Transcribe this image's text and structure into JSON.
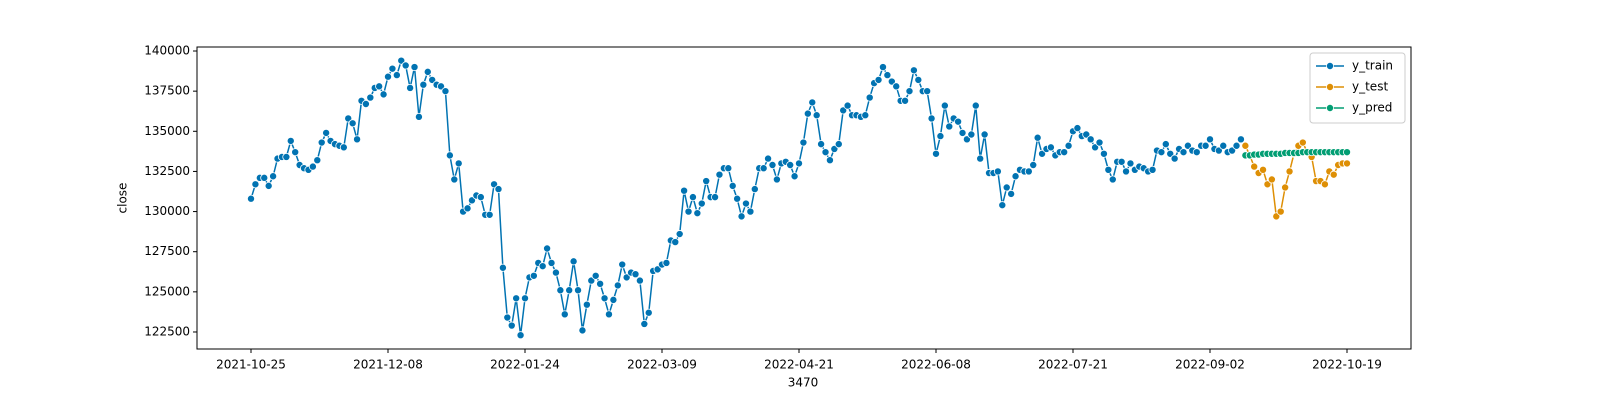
{
  "chart_data": {
    "type": "line",
    "x_label": "3470",
    "y_label": "close",
    "categories": [
      "2021-10-25",
      null,
      null,
      null,
      null,
      null,
      null,
      null,
      null,
      null,
      null,
      null,
      null,
      null,
      null,
      null,
      null,
      null,
      null,
      null,
      null,
      null,
      null,
      null,
      null,
      null,
      null,
      null,
      null,
      null,
      null,
      "2021-12-08",
      null,
      null,
      null,
      null,
      null,
      null,
      null,
      null,
      null,
      null,
      null,
      null,
      null,
      null,
      null,
      null,
      null,
      null,
      null,
      null,
      null,
      null,
      null,
      null,
      null,
      null,
      null,
      null,
      null,
      null,
      "2022-01-24",
      null,
      null,
      null,
      null,
      null,
      null,
      null,
      null,
      null,
      null,
      null,
      null,
      null,
      null,
      null,
      null,
      null,
      null,
      null,
      null,
      null,
      null,
      null,
      null,
      null,
      null,
      null,
      null,
      null,
      null,
      "2022-03-09",
      null,
      null,
      null,
      null,
      null,
      null,
      null,
      null,
      null,
      null,
      null,
      null,
      null,
      null,
      null,
      null,
      null,
      null,
      null,
      null,
      null,
      null,
      null,
      null,
      null,
      null,
      null,
      null,
      null,
      null,
      "2022-04-21",
      null,
      null,
      null,
      null,
      null,
      null,
      null,
      null,
      null,
      null,
      null,
      null,
      null,
      null,
      null,
      null,
      null,
      null,
      null,
      null,
      null,
      null,
      null,
      null,
      null,
      null,
      null,
      null,
      null,
      null,
      "2022-06-08",
      null,
      null,
      null,
      null,
      null,
      null,
      null,
      null,
      null,
      null,
      null,
      null,
      null,
      null,
      null,
      null,
      null,
      null,
      null,
      null,
      null,
      null,
      null,
      null,
      null,
      null,
      null,
      null,
      null,
      null,
      "2022-07-21",
      null,
      null,
      null,
      null,
      null,
      null,
      null,
      null,
      null,
      null,
      null,
      null,
      null,
      null,
      null,
      null,
      null,
      null,
      null,
      null,
      null,
      null,
      null,
      null,
      null,
      null,
      null,
      null,
      null,
      null,
      "2022-09-02",
      null,
      null,
      null,
      null,
      null,
      null,
      null,
      null,
      null,
      null,
      null,
      null,
      null,
      null,
      null,
      null,
      null,
      null,
      null,
      null,
      null,
      null,
      null,
      null,
      null,
      null,
      null,
      null,
      null,
      null,
      "2022-10-19"
    ],
    "series": [
      {
        "name": "y_train",
        "color": "#0173b2",
        "values": [
          130800,
          131700,
          132100,
          132100,
          131600,
          132200,
          133300,
          133400,
          133400,
          134400,
          133700,
          132900,
          132700,
          132600,
          132800,
          133200,
          134300,
          134900,
          134400,
          134200,
          134100,
          134000,
          135800,
          135500,
          134500,
          136900,
          136700,
          137100,
          137700,
          137800,
          137300,
          138400,
          138900,
          138500,
          139400,
          139100,
          137700,
          139000,
          135900,
          137900,
          138700,
          138200,
          137900,
          137800,
          137500,
          133500,
          132000,
          133000,
          130000,
          130200,
          130700,
          131000,
          130900,
          129800,
          129800,
          131700,
          131400,
          126500,
          123400,
          122900,
          124600,
          122300,
          124600,
          125900,
          126000,
          126800,
          126600,
          127700,
          126800,
          126200,
          125100,
          123600,
          125100,
          126900,
          125100,
          122600,
          124200,
          125700,
          126000,
          125500,
          124600,
          123600,
          124500,
          125400,
          126700,
          125900,
          126200,
          126100,
          125700,
          123000,
          123700,
          126300,
          126400,
          126700,
          126800,
          128200,
          128100,
          128600,
          131300,
          130000,
          130900,
          129900,
          130500,
          131900,
          130900,
          130900,
          132300,
          132700,
          132700,
          131600,
          130800,
          129700,
          130500,
          130000,
          131400,
          132700,
          132700,
          133300,
          132900,
          132000,
          133000,
          133100,
          132900,
          132200,
          133000,
          134300,
          136100,
          136800,
          136000,
          134200,
          133700,
          133200,
          133900,
          134200,
          136300,
          136600,
          136000,
          136000,
          135900,
          136000,
          137100,
          138000,
          138200,
          139000,
          138500,
          138100,
          137800,
          136900,
          136900,
          137500,
          138800,
          138200,
          137500,
          137500,
          135800,
          133600,
          134700,
          136600,
          135300,
          135800,
          135600,
          134900,
          134500,
          134800,
          136600,
          133300,
          134800,
          132400,
          132400,
          132500,
          130400,
          131500,
          131100,
          132200,
          132600,
          132500,
          132500,
          132900,
          134600,
          133600,
          133900,
          134000,
          133500,
          133700,
          133700,
          134100,
          135000,
          135200,
          134700,
          134800,
          134500,
          134000,
          134300,
          133600,
          132600,
          132000,
          133100,
          133100,
          132500,
          133000,
          132600,
          132800,
          132700,
          132500,
          132600,
          133800,
          133700,
          134200,
          133600,
          133300,
          133900,
          133700,
          134100,
          133800,
          133700,
          134100,
          134100,
          134500,
          133900,
          133800,
          134100,
          133700,
          133800,
          134100,
          134500,
          null,
          null,
          null,
          null,
          null,
          null,
          null,
          null,
          null,
          null,
          null,
          null,
          null,
          null,
          null,
          null,
          null,
          null,
          null,
          null,
          null,
          null,
          null,
          null
        ]
      },
      {
        "name": "y_test",
        "color": "#de8f05",
        "values": [
          null,
          null,
          null,
          null,
          null,
          null,
          null,
          null,
          null,
          null,
          null,
          null,
          null,
          null,
          null,
          null,
          null,
          null,
          null,
          null,
          null,
          null,
          null,
          null,
          null,
          null,
          null,
          null,
          null,
          null,
          null,
          null,
          null,
          null,
          null,
          null,
          null,
          null,
          null,
          null,
          null,
          null,
          null,
          null,
          null,
          null,
          null,
          null,
          null,
          null,
          null,
          null,
          null,
          null,
          null,
          null,
          null,
          null,
          null,
          null,
          null,
          null,
          null,
          null,
          null,
          null,
          null,
          null,
          null,
          null,
          null,
          null,
          null,
          null,
          null,
          null,
          null,
          null,
          null,
          null,
          null,
          null,
          null,
          null,
          null,
          null,
          null,
          null,
          null,
          null,
          null,
          null,
          null,
          null,
          null,
          null,
          null,
          null,
          null,
          null,
          null,
          null,
          null,
          null,
          null,
          null,
          null,
          null,
          null,
          null,
          null,
          null,
          null,
          null,
          null,
          null,
          null,
          null,
          null,
          null,
          null,
          null,
          null,
          null,
          null,
          null,
          null,
          null,
          null,
          null,
          null,
          null,
          null,
          null,
          null,
          null,
          null,
          null,
          null,
          null,
          null,
          null,
          null,
          null,
          null,
          null,
          null,
          null,
          null,
          null,
          null,
          null,
          null,
          null,
          null,
          null,
          null,
          null,
          null,
          null,
          null,
          null,
          null,
          null,
          null,
          null,
          null,
          null,
          null,
          null,
          null,
          null,
          null,
          null,
          null,
          null,
          null,
          null,
          null,
          null,
          null,
          null,
          null,
          null,
          null,
          null,
          null,
          null,
          null,
          null,
          null,
          null,
          null,
          null,
          null,
          null,
          null,
          null,
          null,
          null,
          null,
          null,
          null,
          null,
          null,
          null,
          null,
          null,
          null,
          null,
          null,
          null,
          null,
          null,
          null,
          null,
          null,
          null,
          null,
          null,
          null,
          null,
          null,
          null,
          null,
          134100,
          133500,
          132800,
          132400,
          132600,
          131700,
          132000,
          129700,
          130000,
          131500,
          132500,
          133600,
          134100,
          134300,
          133700,
          133400,
          131900,
          131900,
          131700,
          132500,
          132300,
          132900,
          133000,
          133000
        ]
      },
      {
        "name": "y_pred",
        "color": "#029e73",
        "values": [
          null,
          null,
          null,
          null,
          null,
          null,
          null,
          null,
          null,
          null,
          null,
          null,
          null,
          null,
          null,
          null,
          null,
          null,
          null,
          null,
          null,
          null,
          null,
          null,
          null,
          null,
          null,
          null,
          null,
          null,
          null,
          null,
          null,
          null,
          null,
          null,
          null,
          null,
          null,
          null,
          null,
          null,
          null,
          null,
          null,
          null,
          null,
          null,
          null,
          null,
          null,
          null,
          null,
          null,
          null,
          null,
          null,
          null,
          null,
          null,
          null,
          null,
          null,
          null,
          null,
          null,
          null,
          null,
          null,
          null,
          null,
          null,
          null,
          null,
          null,
          null,
          null,
          null,
          null,
          null,
          null,
          null,
          null,
          null,
          null,
          null,
          null,
          null,
          null,
          null,
          null,
          null,
          null,
          null,
          null,
          null,
          null,
          null,
          null,
          null,
          null,
          null,
          null,
          null,
          null,
          null,
          null,
          null,
          null,
          null,
          null,
          null,
          null,
          null,
          null,
          null,
          null,
          null,
          null,
          null,
          null,
          null,
          null,
          null,
          null,
          null,
          null,
          null,
          null,
          null,
          null,
          null,
          null,
          null,
          null,
          null,
          null,
          null,
          null,
          null,
          null,
          null,
          null,
          null,
          null,
          null,
          null,
          null,
          null,
          null,
          null,
          null,
          null,
          null,
          null,
          null,
          null,
          null,
          null,
          null,
          null,
          null,
          null,
          null,
          null,
          null,
          null,
          null,
          null,
          null,
          null,
          null,
          null,
          null,
          null,
          null,
          null,
          null,
          null,
          null,
          null,
          null,
          null,
          null,
          null,
          null,
          null,
          null,
          null,
          null,
          null,
          null,
          null,
          null,
          null,
          null,
          null,
          null,
          null,
          null,
          null,
          null,
          null,
          null,
          null,
          null,
          null,
          null,
          null,
          null,
          null,
          null,
          null,
          null,
          null,
          null,
          null,
          null,
          null,
          null,
          null,
          null,
          null,
          null,
          null,
          133500,
          133500,
          133550,
          133550,
          133600,
          133600,
          133600,
          133600,
          133600,
          133650,
          133650,
          133650,
          133650,
          133700,
          133700,
          133700,
          133700,
          133700,
          133700,
          133700,
          133700,
          133700,
          133700,
          133700
        ]
      }
    ],
    "ylim": [
      121440,
      140250
    ],
    "yticks": [
      122500,
      125000,
      127500,
      130000,
      132500,
      135000,
      137500,
      140000
    ],
    "grid": false,
    "legend": "upper right"
  }
}
